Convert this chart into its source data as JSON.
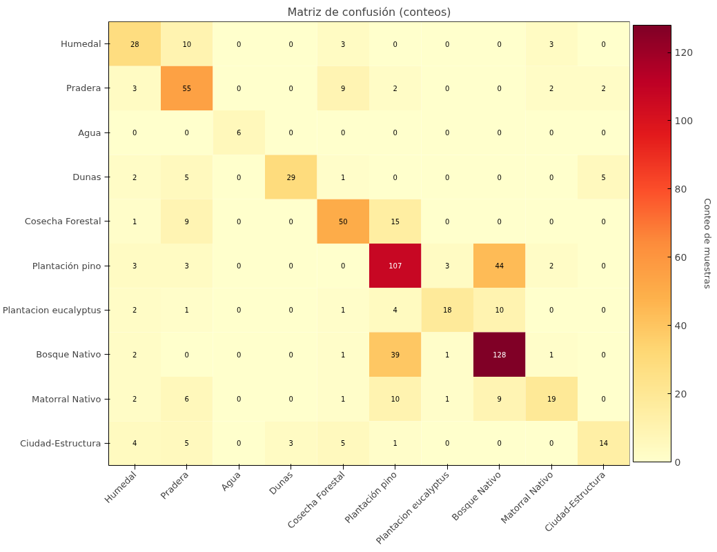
{
  "chart_data": {
    "type": "heatmap",
    "title": "Matriz de confusión (conteos)",
    "clabel": "Conteo de muestras",
    "categories": [
      "Humedal",
      "Pradera",
      "Agua",
      "Dunas",
      "Cosecha Forestal",
      "Plantación pino",
      "Plantacion eucalyptus",
      "Bosque Nativo",
      "Matorral Nativo",
      "Ciudad-Estructura"
    ],
    "y_categories": [
      "Humedal",
      "Pradera",
      "Agua",
      "Dunas",
      "Cosecha Forestal",
      "Plantación pino",
      "Plantacion eucalyptus",
      "Bosque Nativo",
      "Matorral Nativo",
      "Ciudad-Estructura"
    ],
    "cells": [
      [
        28,
        10,
        0,
        0,
        3,
        0,
        0,
        0,
        3,
        0
      ],
      [
        3,
        55,
        0,
        0,
        9,
        2,
        0,
        0,
        2,
        2
      ],
      [
        0,
        0,
        6,
        0,
        0,
        0,
        0,
        0,
        0,
        0
      ],
      [
        2,
        5,
        0,
        29,
        1,
        0,
        0,
        0,
        0,
        5
      ],
      [
        1,
        9,
        0,
        0,
        50,
        15,
        0,
        0,
        0,
        0
      ],
      [
        3,
        3,
        0,
        0,
        0,
        107,
        3,
        44,
        2,
        0
      ],
      [
        2,
        1,
        0,
        0,
        1,
        4,
        18,
        10,
        0,
        0
      ],
      [
        2,
        0,
        0,
        0,
        1,
        39,
        1,
        128,
        1,
        0
      ],
      [
        2,
        6,
        0,
        0,
        1,
        10,
        1,
        9,
        19,
        0
      ],
      [
        4,
        5,
        0,
        3,
        5,
        1,
        0,
        0,
        0,
        14
      ]
    ],
    "clim": [
      0,
      128
    ],
    "cticks": [
      0,
      20,
      40,
      60,
      80,
      100,
      120
    ],
    "data_labels": true
  }
}
